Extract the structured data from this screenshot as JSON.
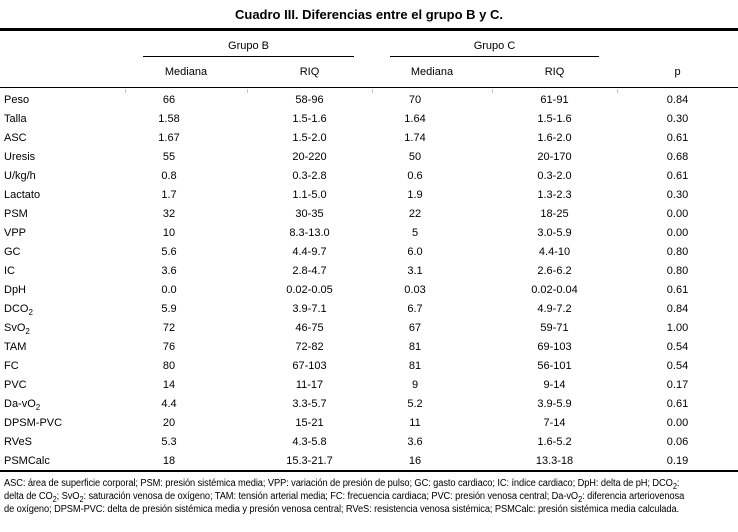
{
  "title": "Cuadro III. Diferencias entre el grupo B y C.",
  "header": {
    "group_b": "Grupo B",
    "group_c": "Grupo C",
    "median_label": "Mediana",
    "riq_label": "RIQ",
    "p_label": "p"
  },
  "rows": [
    {
      "label": "Peso",
      "sub": "",
      "b_med": "66",
      "b_riq": "58-96",
      "c_med": "70",
      "c_riq": "61-91",
      "p": "0.84"
    },
    {
      "label": "Talla",
      "sub": "",
      "b_med": "1.58",
      "b_riq": "1.5-1.6",
      "c_med": "1.64",
      "c_riq": "1.5-1.6",
      "p": "0.30"
    },
    {
      "label": "ASC",
      "sub": "",
      "b_med": "1.67",
      "b_riq": "1.5-2.0",
      "c_med": "1.74",
      "c_riq": "1.6-2.0",
      "p": "0.61"
    },
    {
      "label": "Uresis",
      "sub": "",
      "b_med": "55",
      "b_riq": "20-220",
      "c_med": "50",
      "c_riq": "20-170",
      "p": "0.68"
    },
    {
      "label": "U/kg/h",
      "sub": "",
      "b_med": "0.8",
      "b_riq": "0.3-2.8",
      "c_med": "0.6",
      "c_riq": "0.3-2.0",
      "p": "0.61"
    },
    {
      "label": "Lactato",
      "sub": "",
      "b_med": "1.7",
      "b_riq": "1.1-5.0",
      "c_med": "1.9",
      "c_riq": "1.3-2.3",
      "p": "0.30"
    },
    {
      "label": "PSM",
      "sub": "",
      "b_med": "32",
      "b_riq": "30-35",
      "c_med": "22",
      "c_riq": "18-25",
      "p": "0.00"
    },
    {
      "label": "VPP",
      "sub": "",
      "b_med": "10",
      "b_riq": "8.3-13.0",
      "c_med": "5",
      "c_riq": "3.0-5.9",
      "p": "0.00"
    },
    {
      "label": "GC",
      "sub": "",
      "b_med": "5.6",
      "b_riq": "4.4-9.7",
      "c_med": "6.0",
      "c_riq": "4.4-10",
      "p": "0.80"
    },
    {
      "label": "IC",
      "sub": "",
      "b_med": "3.6",
      "b_riq": "2.8-4.7",
      "c_med": "3.1",
      "c_riq": "2.6-6.2",
      "p": "0.80"
    },
    {
      "label": "DpH",
      "sub": "",
      "b_med": "0.0",
      "b_riq": "0.02-0.05",
      "c_med": "0.03",
      "c_riq": "0.02-0.04",
      "p": "0.61"
    },
    {
      "label": "DCO",
      "sub": "2",
      "b_med": "5.9",
      "b_riq": "3.9-7.1",
      "c_med": "6.7",
      "c_riq": "4.9-7.2",
      "p": "0.84"
    },
    {
      "label": "SvO",
      "sub": "2",
      "b_med": "72",
      "b_riq": "46-75",
      "c_med": "67",
      "c_riq": "59-71",
      "p": "1.00"
    },
    {
      "label": "TAM",
      "sub": "",
      "b_med": "76",
      "b_riq": "72-82",
      "c_med": "81",
      "c_riq": "69-103",
      "p": "0.54"
    },
    {
      "label": "FC",
      "sub": "",
      "b_med": "80",
      "b_riq": "67-103",
      "c_med": "81",
      "c_riq": "56-101",
      "p": "0.54"
    },
    {
      "label": "PVC",
      "sub": "",
      "b_med": "14",
      "b_riq": "11-17",
      "c_med": "9",
      "c_riq": "9-14",
      "p": "0.17"
    },
    {
      "label": "Da-vO",
      "sub": "2",
      "b_med": "4.4",
      "b_riq": "3.3-5.7",
      "c_med": "5.2",
      "c_riq": "3.9-5.9",
      "p": "0.61"
    },
    {
      "label": "DPSM-PVC",
      "sub": "",
      "b_med": "20",
      "b_riq": "15-21",
      "c_med": "11",
      "c_riq": "7-14",
      "p": "0.00"
    },
    {
      "label": "RVeS",
      "sub": "",
      "b_med": "5.3",
      "b_riq": "4.3-5.8",
      "c_med": "3.6",
      "c_riq": "1.6-5.2",
      "p": "0.06"
    },
    {
      "label": "PSMCalc",
      "sub": "",
      "b_med": "18",
      "b_riq": "15.3-21.7",
      "c_med": "16",
      "c_riq": "13.3-18",
      "p": "0.19"
    }
  ],
  "footnote_lines": [
    [
      {
        "t": "ASC: área de superficie corporal; PSM: presión sistémica media; VPP: variación de presión de pulso; GC: gasto cardiaco; IC: índice cardiaco; DpH: delta de pH; DCO",
        "sub": false
      },
      {
        "t": "2",
        "sub": true
      },
      {
        "t": ":",
        "sub": false
      }
    ],
    [
      {
        "t": "delta de CO",
        "sub": false
      },
      {
        "t": "2",
        "sub": true
      },
      {
        "t": "; SvO",
        "sub": false
      },
      {
        "t": "2",
        "sub": true
      },
      {
        "t": ": saturación venosa de oxígeno; TAM: tensión arterial media; FC: frecuencia cardiaca; PVC: presión venosa central; Da-vO",
        "sub": false
      },
      {
        "t": "2",
        "sub": true
      },
      {
        "t": ": diferencia arteriovenosa",
        "sub": false
      }
    ],
    [
      {
        "t": "de oxígeno; DPSM-PVC: delta de presión sistémica media y presión venosa central; RVeS: resistencia venosa sistémica; PSMCalc: presión sistémica media calculada.",
        "sub": false
      }
    ]
  ],
  "colors": {
    "text": "#000000",
    "background": "#ffffff",
    "rule": "#000000",
    "faint_gridline": "#c9c9c9"
  }
}
